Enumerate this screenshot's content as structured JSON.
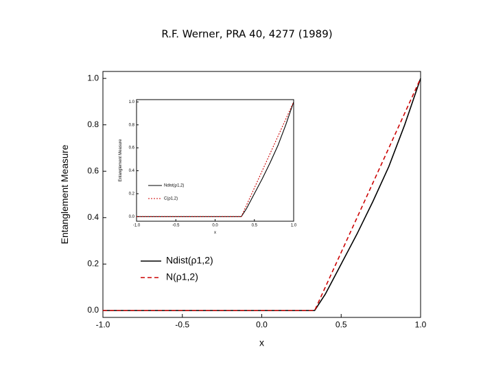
{
  "chart_data": [
    {
      "type": "line",
      "title": "R.F. Werner, PRA 40, 4277 (1989)",
      "xlabel": "x",
      "ylabel": "Entanglement Measure",
      "x": [
        -1.0,
        -0.5,
        0.0,
        0.3333,
        0.4,
        0.5,
        0.6,
        0.7,
        0.8,
        0.9,
        1.0
      ],
      "series": [
        {
          "name": "Ndist(ρ1,2)",
          "color": "#000000",
          "line_style": "solid",
          "values": [
            0,
            0,
            0,
            0,
            0.07,
            0.2,
            0.33,
            0.47,
            0.62,
            0.8,
            1.0
          ]
        },
        {
          "name": "N(ρ1,2)",
          "color": "#cc0000",
          "line_style": "dashed",
          "values": [
            0,
            0,
            0,
            0,
            0.1,
            0.25,
            0.4,
            0.55,
            0.7,
            0.85,
            1.0
          ]
        }
      ],
      "xlim": [
        -1.0,
        1.0
      ],
      "ylim": [
        -0.03,
        1.03
      ],
      "xticks": [
        {
          "value": -1.0,
          "label": "-1.0"
        },
        -0.5,
        {
          "value": 0.0,
          "label": "0.0"
        },
        0.5,
        {
          "value": 1.0,
          "label": "1.0"
        }
      ],
      "yticks": [
        {
          "value": 0.0,
          "label": "0.0"
        },
        0.2,
        0.4,
        0.6,
        0.8,
        {
          "value": 1.0,
          "label": "1.0"
        }
      ],
      "grid": false,
      "legend": "lower left"
    },
    {
      "type": "line",
      "xlabel": "x",
      "ylabel": "Entanglement Measure",
      "x": [
        -1.0,
        -0.5,
        0.0,
        0.3333,
        0.4,
        0.5,
        0.6,
        0.7,
        0.8,
        0.9,
        1.0
      ],
      "series": [
        {
          "name": "Ndist(ρ1,2)",
          "color": "#000000",
          "line_style": "solid",
          "values": [
            0,
            0,
            0,
            0,
            0.07,
            0.2,
            0.33,
            0.47,
            0.62,
            0.8,
            1.0
          ]
        },
        {
          "name": "C(ρ1,2)",
          "color": "#cc0000",
          "line_style": "dotted",
          "values": [
            0,
            0,
            0,
            0,
            0.1,
            0.25,
            0.4,
            0.55,
            0.7,
            0.85,
            1.0
          ]
        }
      ],
      "xlim": [
        -1.0,
        1.0
      ],
      "ylim": [
        -0.04,
        1.02
      ],
      "xticks": [
        {
          "value": -1.0,
          "label": "-1.0"
        },
        -0.5,
        {
          "value": 0.0,
          "label": "0.0"
        },
        0.5,
        {
          "value": 1.0,
          "label": "1.0"
        }
      ],
      "yticks": [
        {
          "value": 0.0,
          "label": "0.0"
        },
        0.2,
        0.4,
        0.6,
        0.8,
        {
          "value": 1.0,
          "label": "1.0"
        }
      ],
      "grid": false,
      "legend": "lower left"
    }
  ]
}
